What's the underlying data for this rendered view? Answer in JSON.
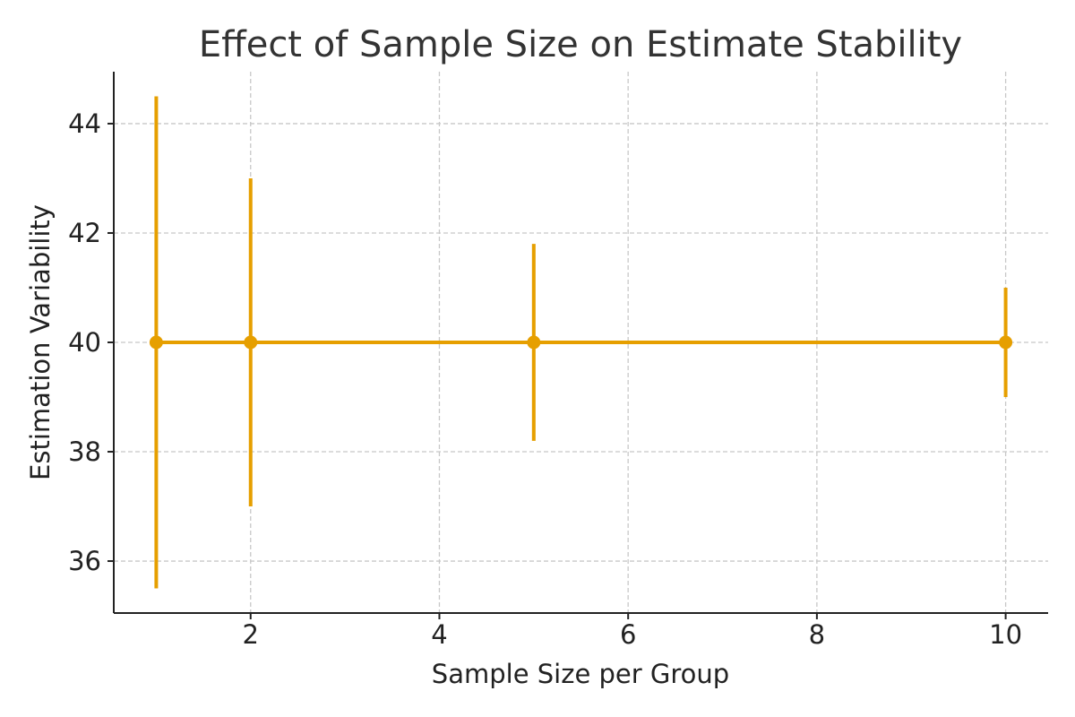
{
  "chart_data": {
    "type": "line",
    "title": "Effect of Sample Size on Estimate Stability",
    "xlabel": "Sample Size per Group",
    "ylabel": "Estimation Variability",
    "xlim": [
      0.55,
      10.45
    ],
    "ylim": [
      35.05,
      44.95
    ],
    "xticks": [
      2,
      4,
      6,
      8,
      10
    ],
    "yticks": [
      36,
      38,
      40,
      42,
      44
    ],
    "grid": true,
    "legend": "none",
    "series": [
      {
        "color": "#E69F00",
        "x": [
          1,
          2,
          5,
          10
        ],
        "y": [
          40,
          40,
          40,
          40
        ],
        "yerr": [
          4.5,
          3.0,
          1.8,
          1.0
        ]
      }
    ]
  }
}
